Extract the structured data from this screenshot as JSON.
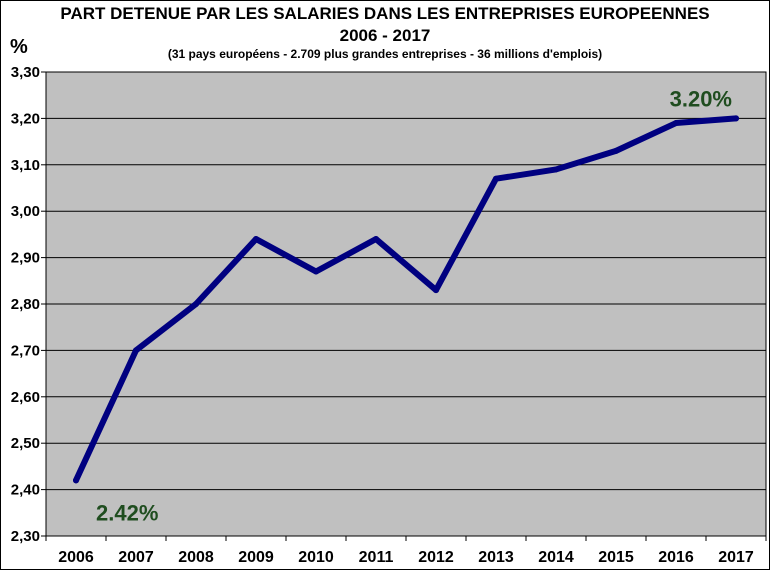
{
  "chart_data": {
    "type": "line",
    "title": "PART  DETENUE PAR LES SALARIES DANS LES ENTREPRISES EUROPEENNES",
    "subtitle": "2006 - 2017",
    "note": "(31 pays européens  - 2.709 plus grandes entreprises  - 36 millions d'emplois)",
    "ylabel": "%",
    "xlabel": "",
    "categories": [
      "2006",
      "2007",
      "2008",
      "2009",
      "2010",
      "2011",
      "2012",
      "2013",
      "2014",
      "2015",
      "2016",
      "2017"
    ],
    "values": [
      2.42,
      2.7,
      2.8,
      2.94,
      2.87,
      2.94,
      2.83,
      3.07,
      3.09,
      3.13,
      3.19,
      3.2
    ],
    "ylim": [
      2.3,
      3.3
    ],
    "yticks": [
      "2,30",
      "2,40",
      "2,50",
      "2,60",
      "2,70",
      "2,80",
      "2,90",
      "3,00",
      "3,10",
      "3,20",
      "3,30"
    ],
    "grid": true,
    "colors": {
      "line": "#000080",
      "plot_bg": "#c0c0c0",
      "annotation": "#1f4d1f"
    },
    "annotations": [
      {
        "text": "2.42%",
        "index": 0
      },
      {
        "text": "3.20%",
        "index": 11
      }
    ]
  }
}
